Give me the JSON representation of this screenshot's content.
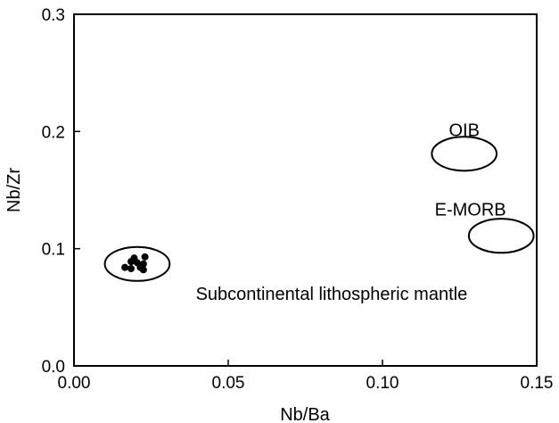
{
  "chart_data": {
    "type": "scatter",
    "xlabel": "Nb/Ba",
    "ylabel": "Nb/Zr",
    "xlim": [
      0.0,
      0.15
    ],
    "ylim": [
      0.0,
      0.3
    ],
    "x_ticks": [
      0.0,
      0.05,
      0.1,
      0.15
    ],
    "x_tick_labels": [
      "0.00",
      "0.05",
      "0.10",
      "0.15"
    ],
    "y_ticks": [
      0.0,
      0.1,
      0.2,
      0.3
    ],
    "y_tick_labels": [
      "0.0",
      "0.1",
      "0.2",
      "0.3"
    ],
    "grid": false,
    "series": [
      {
        "values": [
          {
            "x": 0.0165,
            "y": 0.084
          },
          {
            "x": 0.0185,
            "y": 0.083
          },
          {
            "x": 0.0195,
            "y": 0.092
          },
          {
            "x": 0.0205,
            "y": 0.088
          },
          {
            "x": 0.0225,
            "y": 0.087
          },
          {
            "x": 0.0225,
            "y": 0.082
          },
          {
            "x": 0.023,
            "y": 0.093
          },
          {
            "x": 0.0185,
            "y": 0.089
          },
          {
            "x": 0.0215,
            "y": 0.084
          }
        ]
      }
    ],
    "regions": [
      {
        "label": "OIB",
        "cx": 0.1265,
        "cy": 0.181,
        "rx": 0.0105,
        "ry": 0.0145,
        "label_x": 0.1265,
        "label_y": 0.2015
      },
      {
        "label": "E-MORB",
        "cx": 0.1385,
        "cy": 0.111,
        "rx": 0.0105,
        "ry": 0.0145,
        "label_x": 0.1285,
        "label_y": 0.1335
      },
      {
        "label": "Subcontinental lithospheric mantle",
        "cx": 0.0205,
        "cy": 0.087,
        "rx": 0.0105,
        "ry": 0.0145,
        "label_x": 0.0835,
        "label_y": 0.0615
      }
    ]
  }
}
